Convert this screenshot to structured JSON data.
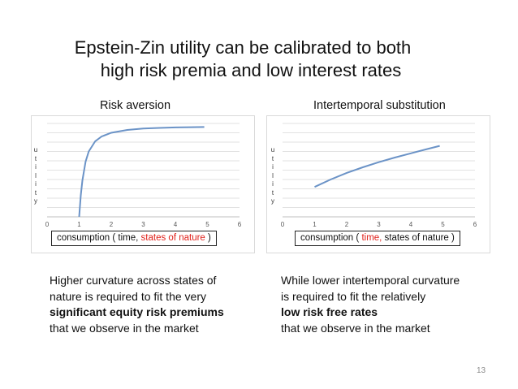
{
  "slide": {
    "title_line1": "Epstein-Zin utility can be calibrated to both",
    "title_line2": "high risk premia and low interest rates",
    "page_number": "13"
  },
  "left_panel": {
    "title": "Risk aversion",
    "ylabel_letters": [
      "u",
      "t",
      "i",
      "l",
      "i",
      "t",
      "y"
    ],
    "xlabel_part1": "consumption ( time, ",
    "xlabel_highlight": "states of nature",
    "xlabel_part3": " )",
    "text_line1": "Higher curvature across states of",
    "text_line2": "nature is required to fit the very",
    "text_line3_bold": "significant equity risk premiums",
    "text_line4": "that we observe in the market"
  },
  "right_panel": {
    "title": "Intertemporal substitution",
    "ylabel_letters": [
      "u",
      "t",
      "i",
      "l",
      "i",
      "t",
      "y"
    ],
    "xlabel_part1": "consumption ( ",
    "xlabel_highlight": "time,",
    "xlabel_part3": " states of nature )",
    "text_line1": "While lower intertemporal curvature",
    "text_line2": "is required to fit the relatively",
    "text_line3_bold": "low risk free rates",
    "text_line4": "that we observe in the market"
  },
  "colors": {
    "line": "#6b93c7",
    "highlight": "#e0201a",
    "grid": "#d9d9d9"
  },
  "chart_data": [
    {
      "type": "line",
      "title": "Risk aversion",
      "xlabel": "consumption ( time, states of nature )",
      "ylabel": "utility",
      "xlim": [
        0,
        6
      ],
      "xticks": [
        0,
        1,
        2,
        3,
        4,
        5,
        6
      ],
      "ylim": [
        0,
        10
      ],
      "grid": true,
      "series": [
        {
          "x": [
            1.0,
            1.05,
            1.1,
            1.2,
            1.3,
            1.5,
            1.7,
            2.0,
            2.5,
            3.0,
            3.5,
            4.0,
            4.5,
            4.9
          ],
          "y": [
            0.0,
            2.3,
            3.9,
            5.9,
            7.0,
            8.1,
            8.6,
            9.0,
            9.3,
            9.45,
            9.52,
            9.57,
            9.6,
            9.62
          ]
        }
      ]
    },
    {
      "type": "line",
      "title": "Intertemporal substitution",
      "xlabel": "consumption ( time, states of nature )",
      "ylabel": "utility",
      "xlim": [
        0,
        6
      ],
      "xticks": [
        0,
        1,
        2,
        3,
        4,
        5,
        6
      ],
      "ylim": [
        0,
        10
      ],
      "grid": true,
      "series": [
        {
          "x": [
            1.0,
            1.5,
            2.0,
            2.5,
            3.0,
            3.5,
            4.0,
            4.5,
            4.9
          ],
          "y": [
            3.2,
            4.0,
            4.7,
            5.3,
            5.85,
            6.35,
            6.8,
            7.25,
            7.6
          ]
        }
      ]
    }
  ]
}
